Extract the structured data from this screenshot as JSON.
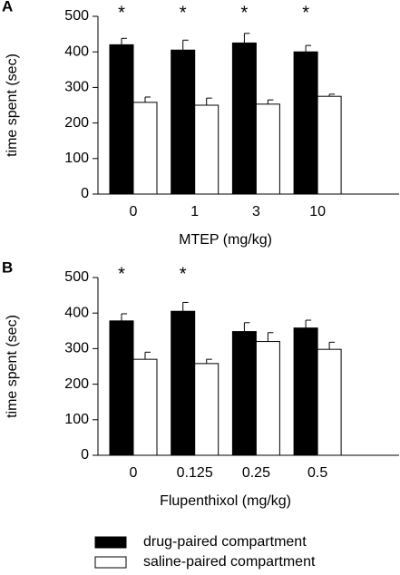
{
  "chart_data": [
    {
      "type": "bar",
      "panel": "A",
      "y_label": "time spent (sec)",
      "x_label": "MTEP (mg/kg)",
      "categories": [
        "0",
        "1",
        "3",
        "10"
      ],
      "series": [
        {
          "name": "drug-paired compartment",
          "color": "#000000",
          "values": [
            420,
            405,
            425,
            400
          ],
          "errors": [
            18,
            28,
            27,
            18
          ]
        },
        {
          "name": "saline-paired compartment",
          "color": "#ffffff",
          "values": [
            258,
            250,
            253,
            275
          ],
          "errors": [
            15,
            20,
            12,
            6
          ]
        }
      ],
      "significance": [
        "*",
        "*",
        "*",
        "*"
      ],
      "ylim": [
        0,
        500
      ],
      "yticks": [
        0,
        100,
        200,
        300,
        400,
        500
      ]
    },
    {
      "type": "bar",
      "panel": "B",
      "y_label": "time spent (sec)",
      "x_label": "Flupenthixol (mg/kg)",
      "categories": [
        "0",
        "0.125",
        "0.25",
        "0.5"
      ],
      "series": [
        {
          "color": "#000000",
          "values": [
            378,
            405,
            348,
            358
          ],
          "errors": [
            20,
            25,
            25,
            22
          ]
        },
        {
          "color": "#ffffff",
          "values": [
            270,
            258,
            320,
            298
          ],
          "errors": [
            20,
            12,
            25,
            20
          ]
        }
      ],
      "significance": [
        "*",
        "*",
        null,
        null
      ],
      "ylim": [
        0,
        500
      ],
      "yticks": [
        0,
        100,
        200,
        300,
        400,
        500
      ]
    }
  ]
}
